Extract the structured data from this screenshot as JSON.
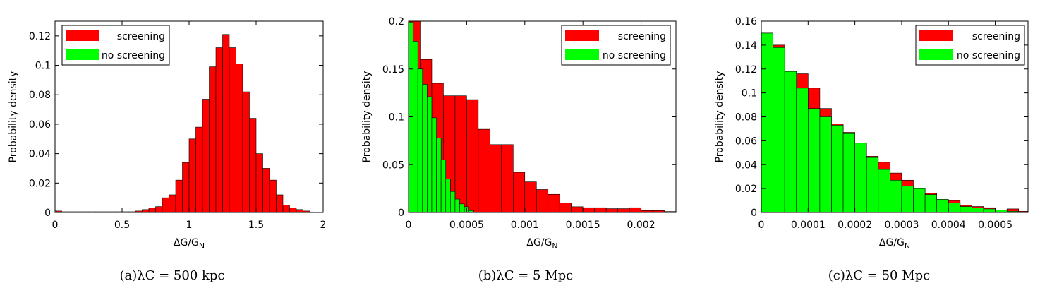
{
  "chart_data": [
    {
      "type": "bar",
      "caption": "(a)λC = 500 kpc",
      "xlabel": "ΔG/G",
      "xlabel_sub": "N",
      "ylabel": "Probability density",
      "xlim": [
        0,
        2
      ],
      "ylim": [
        0,
        0.13
      ],
      "xticks": [
        "0",
        "0.5",
        "1",
        "1.5",
        "2"
      ],
      "xtick_values": [
        0,
        0.5,
        1,
        1.5,
        2
      ],
      "yticks": [
        "0",
        "0.02",
        "0.04",
        "0.06",
        "0.08",
        "0.1",
        "0.12"
      ],
      "ytick_values": [
        0,
        0.02,
        0.04,
        0.06,
        0.08,
        0.1,
        0.12
      ],
      "legend": [
        "screening",
        "no screening"
      ],
      "legend_position": "top-left",
      "colors": {
        "screening": "#ff0000",
        "no_screening": "#00ff00"
      },
      "series": [
        {
          "name": "screening",
          "bins": [
            [
              0.0,
              0.05,
              0.001
            ],
            [
              0.05,
              0.1,
              0.0005
            ],
            [
              0.1,
              0.15,
              0.0005
            ],
            [
              0.15,
              0.2,
              0.0005
            ],
            [
              0.2,
              0.25,
              0.0005
            ],
            [
              0.25,
              0.3,
              0.0005
            ],
            [
              0.3,
              0.35,
              0.0005
            ],
            [
              0.35,
              0.4,
              0.0005
            ],
            [
              0.4,
              0.45,
              0.0005
            ],
            [
              0.45,
              0.5,
              0.0005
            ],
            [
              0.5,
              0.55,
              0.0005
            ],
            [
              0.55,
              0.6,
              0.0005
            ],
            [
              0.6,
              0.65,
              0.001
            ],
            [
              0.65,
              0.7,
              0.002
            ],
            [
              0.7,
              0.75,
              0.003
            ],
            [
              0.75,
              0.8,
              0.004
            ],
            [
              0.8,
              0.85,
              0.01
            ],
            [
              0.85,
              0.9,
              0.012
            ],
            [
              0.9,
              0.95,
              0.022
            ],
            [
              0.95,
              1.0,
              0.034
            ],
            [
              1.0,
              1.05,
              0.05
            ],
            [
              1.05,
              1.1,
              0.058
            ],
            [
              1.1,
              1.15,
              0.077
            ],
            [
              1.15,
              1.2,
              0.099
            ],
            [
              1.2,
              1.25,
              0.112
            ],
            [
              1.25,
              1.3,
              0.121
            ],
            [
              1.3,
              1.35,
              0.112
            ],
            [
              1.35,
              1.4,
              0.101
            ],
            [
              1.4,
              1.45,
              0.082
            ],
            [
              1.45,
              1.5,
              0.064
            ],
            [
              1.5,
              1.55,
              0.04
            ],
            [
              1.55,
              1.6,
              0.03
            ],
            [
              1.6,
              1.65,
              0.022
            ],
            [
              1.65,
              1.7,
              0.012
            ],
            [
              1.7,
              1.75,
              0.005
            ],
            [
              1.75,
              1.8,
              0.003
            ],
            [
              1.8,
              1.85,
              0.002
            ],
            [
              1.85,
              1.9,
              0.001
            ]
          ]
        },
        {
          "name": "no screening",
          "bins": [
            [
              0.0,
              0.01,
              0.001
            ]
          ]
        }
      ]
    },
    {
      "type": "bar",
      "caption": "(b)λC = 5 Mpc",
      "xlabel": "ΔG/G",
      "xlabel_sub": "N",
      "ylabel": "Probability density",
      "xlim": [
        0,
        0.0023
      ],
      "ylim": [
        0,
        0.2
      ],
      "xticks": [
        "0",
        "0.0005",
        "0.001",
        "0.0015",
        "0.002"
      ],
      "xtick_values": [
        0,
        0.0005,
        0.001,
        0.0015,
        0.002
      ],
      "yticks": [
        "0",
        "0.05",
        "0.1",
        "0.15",
        "0.2"
      ],
      "ytick_values": [
        0,
        0.05,
        0.1,
        0.15,
        0.2
      ],
      "legend": [
        "screening",
        "no screening"
      ],
      "legend_position": "top-right",
      "colors": {
        "screening": "#ff0000",
        "no_screening": "#00ff00"
      },
      "series": [
        {
          "name": "screening",
          "bins": [
            [
              0.0,
              0.0001,
              0.2
            ],
            [
              0.0001,
              0.0002,
              0.16
            ],
            [
              0.0002,
              0.0003,
              0.135
            ],
            [
              0.0003,
              0.0004,
              0.122
            ],
            [
              0.0004,
              0.0005,
              0.122
            ],
            [
              0.0005,
              0.0006,
              0.118
            ],
            [
              0.0006,
              0.0007,
              0.087
            ],
            [
              0.0007,
              0.0008,
              0.071
            ],
            [
              0.0008,
              0.0009,
              0.071
            ],
            [
              0.0009,
              0.001,
              0.042
            ],
            [
              0.001,
              0.0011,
              0.032
            ],
            [
              0.0011,
              0.0012,
              0.024
            ],
            [
              0.0012,
              0.0013,
              0.019
            ],
            [
              0.0013,
              0.0014,
              0.01
            ],
            [
              0.0014,
              0.0015,
              0.006
            ],
            [
              0.0015,
              0.0016,
              0.005
            ],
            [
              0.0016,
              0.0017,
              0.005
            ],
            [
              0.0017,
              0.0018,
              0.004
            ],
            [
              0.0018,
              0.0019,
              0.004
            ],
            [
              0.0019,
              0.002,
              0.005
            ],
            [
              0.002,
              0.0021,
              0.002
            ],
            [
              0.0021,
              0.0022,
              0.002
            ],
            [
              0.0022,
              0.0023,
              0.001
            ]
          ]
        },
        {
          "name": "no screening",
          "bins": [
            [
              0.0,
              4e-05,
              0.199
            ],
            [
              4e-05,
              8e-05,
              0.179
            ],
            [
              8e-05,
              0.00012,
              0.15
            ],
            [
              0.00012,
              0.00016,
              0.134
            ],
            [
              0.00016,
              0.0002,
              0.121
            ],
            [
              0.0002,
              0.00024,
              0.099
            ],
            [
              0.00024,
              0.00028,
              0.078
            ],
            [
              0.00028,
              0.00032,
              0.055
            ],
            [
              0.00032,
              0.00036,
              0.035
            ],
            [
              0.00036,
              0.0004,
              0.022
            ],
            [
              0.0004,
              0.00044,
              0.014
            ],
            [
              0.00044,
              0.00048,
              0.009
            ],
            [
              0.00048,
              0.00052,
              0.006
            ],
            [
              0.00052,
              0.00056,
              0.002
            ]
          ]
        }
      ]
    },
    {
      "type": "bar",
      "caption": "(c)λC = 50 Mpc",
      "xlabel": "ΔG/G",
      "xlabel_sub": "N",
      "ylabel": "Probability density",
      "xlim": [
        0,
        0.00057
      ],
      "ylim": [
        0,
        0.16
      ],
      "xticks": [
        "0",
        "0.0001",
        "0.0002",
        "0.0003",
        "0.0004",
        "0.0005"
      ],
      "xtick_values": [
        0,
        0.0001,
        0.0002,
        0.0003,
        0.0004,
        0.0005
      ],
      "yticks": [
        "0",
        "0.02",
        "0.04",
        "0.06",
        "0.08",
        "0.1",
        "0.12",
        "0.14",
        "0.16"
      ],
      "ytick_values": [
        0,
        0.02,
        0.04,
        0.06,
        0.08,
        0.1,
        0.12,
        0.14,
        0.16
      ],
      "legend": [
        "screening",
        "no screening"
      ],
      "legend_position": "top-right",
      "colors": {
        "screening": "#ff0000",
        "no_screening": "#00ff00"
      },
      "series": [
        {
          "name": "screening",
          "bins": [
            [
              0.0,
              2.5e-05,
              0.15
            ],
            [
              2.5e-05,
              5e-05,
              0.14
            ],
            [
              5e-05,
              7.5e-05,
              0.118
            ],
            [
              7.5e-05,
              0.0001,
              0.116
            ],
            [
              0.0001,
              0.000125,
              0.104
            ],
            [
              0.000125,
              0.00015,
              0.087
            ],
            [
              0.00015,
              0.000175,
              0.074
            ],
            [
              0.000175,
              0.0002,
              0.067
            ],
            [
              0.0002,
              0.000225,
              0.057
            ],
            [
              0.000225,
              0.00025,
              0.047
            ],
            [
              0.00025,
              0.000275,
              0.042
            ],
            [
              0.000275,
              0.0003,
              0.033
            ],
            [
              0.0003,
              0.000325,
              0.027
            ],
            [
              0.000325,
              0.00035,
              0.02
            ],
            [
              0.00035,
              0.000375,
              0.016
            ],
            [
              0.000375,
              0.0004,
              0.01
            ],
            [
              0.0004,
              0.000425,
              0.01
            ],
            [
              0.000425,
              0.00045,
              0.006
            ],
            [
              0.00045,
              0.000475,
              0.005
            ],
            [
              0.000475,
              0.0005,
              0.004
            ],
            [
              0.0005,
              0.000525,
              0.002
            ],
            [
              0.000525,
              0.00055,
              0.003
            ],
            [
              0.00055,
              0.00057,
              0.001
            ]
          ]
        },
        {
          "name": "no screening",
          "bins": [
            [
              0.0,
              2.5e-05,
              0.15
            ],
            [
              2.5e-05,
              5e-05,
              0.138
            ],
            [
              5e-05,
              7.5e-05,
              0.118
            ],
            [
              7.5e-05,
              0.0001,
              0.104
            ],
            [
              0.0001,
              0.000125,
              0.087
            ],
            [
              0.000125,
              0.00015,
              0.08
            ],
            [
              0.00015,
              0.000175,
              0.073
            ],
            [
              0.000175,
              0.0002,
              0.066
            ],
            [
              0.0002,
              0.000225,
              0.058
            ],
            [
              0.000225,
              0.00025,
              0.046
            ],
            [
              0.00025,
              0.000275,
              0.036
            ],
            [
              0.000275,
              0.0003,
              0.027
            ],
            [
              0.0003,
              0.000325,
              0.022
            ],
            [
              0.000325,
              0.00035,
              0.02
            ],
            [
              0.00035,
              0.000375,
              0.015
            ],
            [
              0.000375,
              0.0004,
              0.011
            ],
            [
              0.0004,
              0.000425,
              0.008
            ],
            [
              0.000425,
              0.00045,
              0.005
            ],
            [
              0.00045,
              0.000475,
              0.004
            ],
            [
              0.000475,
              0.0005,
              0.003
            ],
            [
              0.0005,
              0.000525,
              0.002
            ],
            [
              0.000525,
              0.00055,
              0.001
            ]
          ]
        }
      ]
    }
  ]
}
